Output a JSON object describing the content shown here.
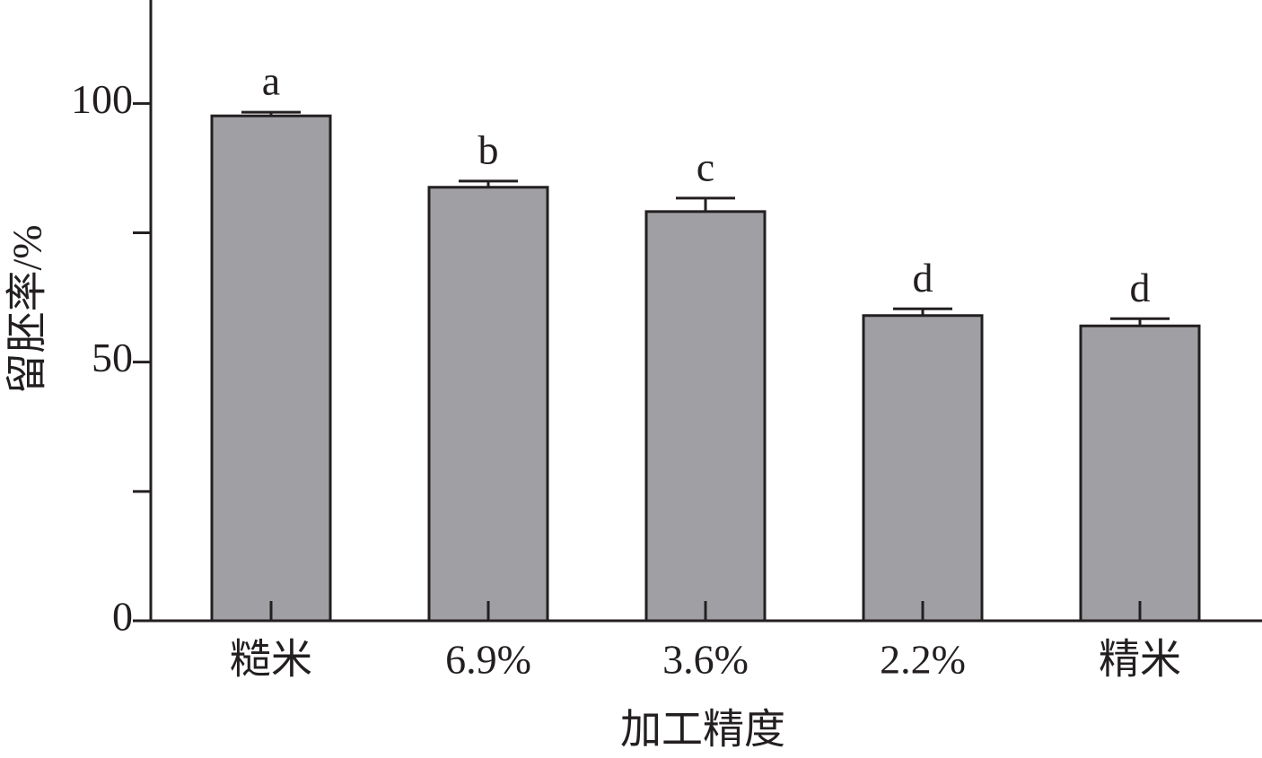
{
  "chart_data": {
    "type": "bar",
    "x_label": "加工精度",
    "y_label": "留胚率/%",
    "categories": [
      "糙米",
      "6.9%",
      "3.6%",
      "2.2%",
      "精米"
    ],
    "values": [
      97.6,
      83.8,
      79.1,
      59.0,
      57.0
    ],
    "errors": [
      0.7,
      1.2,
      2.6,
      1.3,
      1.4
    ],
    "significance": [
      "a",
      "b",
      "c",
      "d",
      "d"
    ],
    "color": "#a0a0a4",
    "ylim": [
      0,
      120
    ],
    "yticks": [
      0,
      50,
      100
    ],
    "yminor_ticks": [
      25,
      75
    ],
    "grid": false
  }
}
